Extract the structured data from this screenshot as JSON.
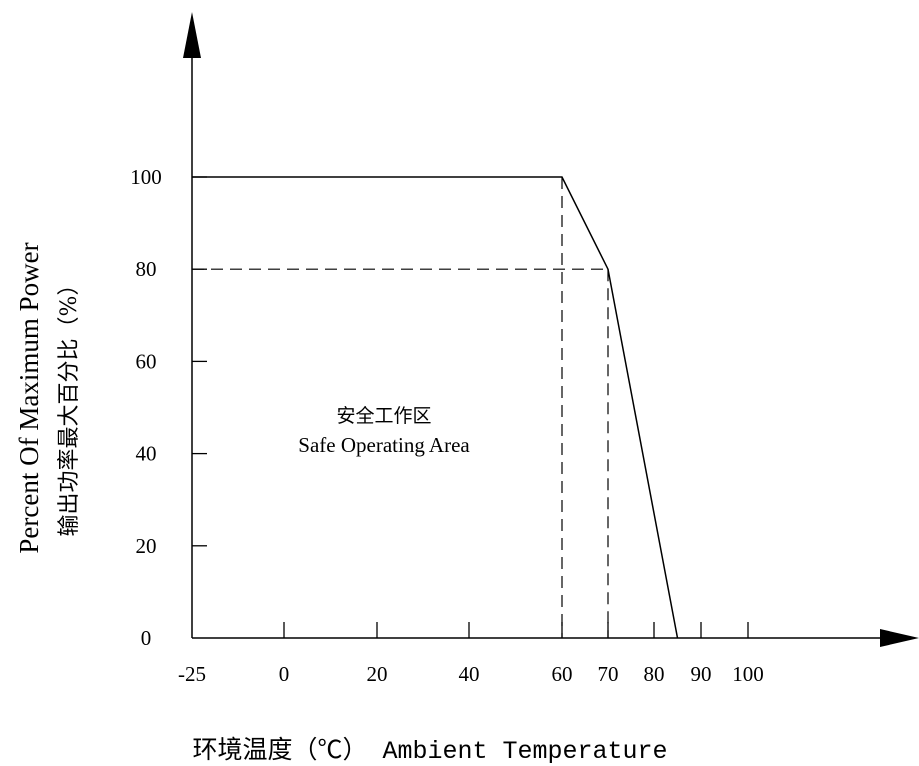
{
  "chart_data": {
    "type": "line",
    "x_ticks": [
      -25,
      0,
      20,
      40,
      60,
      70,
      80,
      90,
      100
    ],
    "y_ticks": [
      0,
      20,
      40,
      60,
      80,
      100
    ],
    "xlim": [
      -25,
      110
    ],
    "ylim": [
      0,
      120
    ],
    "x_unit": "℃",
    "series": [
      {
        "x": [
          -25,
          60,
          70,
          85
        ],
        "y": [
          100,
          100,
          80,
          0
        ]
      }
    ],
    "reference_lines": [
      {
        "from": [
          60,
          100
        ],
        "to": [
          60,
          0
        ],
        "style": "dashed"
      },
      {
        "from": [
          70,
          80
        ],
        "to": [
          70,
          0
        ],
        "style": "dashed"
      },
      {
        "from": [
          -25,
          80
        ],
        "to": [
          70,
          80
        ],
        "style": "dashed"
      }
    ],
    "ylabel_en": "Percent Of Maximum Power",
    "ylabel_cn": "输出功率最大百分比（%）",
    "xlabel": "环境温度（℃） Ambient Temperature",
    "area_label_cn": "安全工作区",
    "area_label_en": "Safe Operating Area",
    "grid": false
  }
}
